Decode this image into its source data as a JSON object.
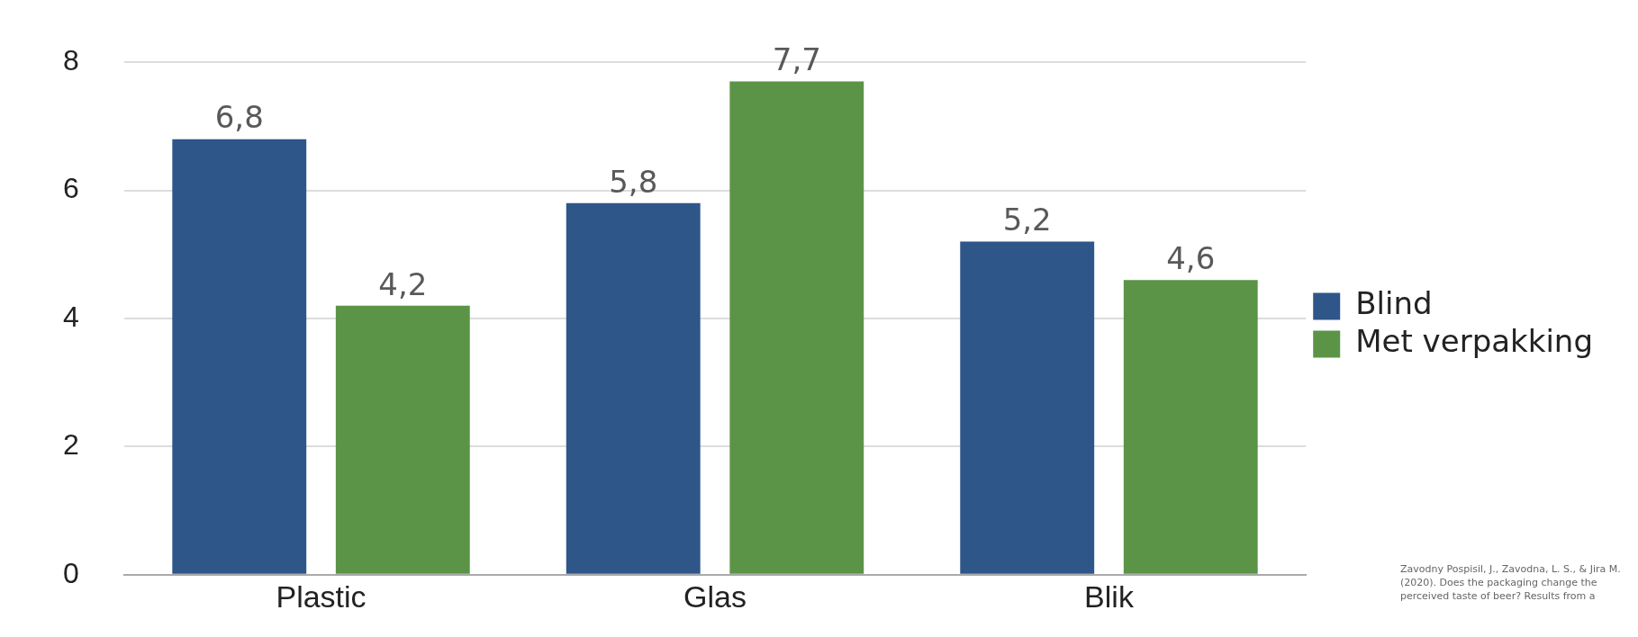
{
  "chart_data": {
    "type": "bar",
    "categories": [
      "Plastic",
      "Glas",
      "Blik"
    ],
    "series": [
      {
        "name": "Blind",
        "color": "#2e5689",
        "values": [
          6.8,
          5.8,
          5.2
        ],
        "value_labels": [
          "6,8",
          "5,8",
          "5,2"
        ]
      },
      {
        "name": "Met verpakking",
        "color": "#5b9447",
        "values": [
          4.2,
          7.7,
          4.6
        ],
        "value_labels": [
          "4,2",
          "7,7",
          "4,6"
        ]
      }
    ],
    "ylim": [
      0,
      8
    ],
    "yticks": [
      0,
      2,
      4,
      6,
      8
    ],
    "grid": "y",
    "legend": "right",
    "annotations": [
      "Zavodny Pospisil, J., Zavodna, L. S., & Jira M. (2020). Does the packaging change the perceived taste of beer? Results from a"
    ]
  }
}
